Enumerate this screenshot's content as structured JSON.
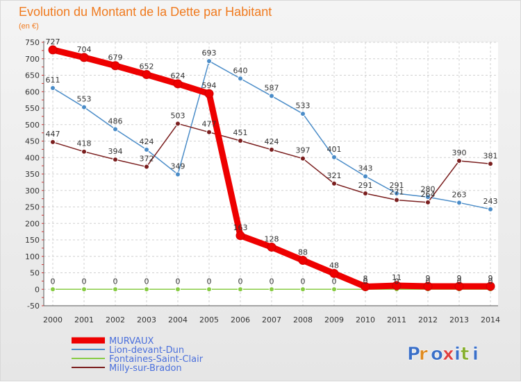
{
  "chart_data": {
    "type": "line",
    "title": "Evolution du Montant de la Dette par Habitant",
    "subtitle": "(en €)",
    "xlabel": "",
    "ylabel": "",
    "x": [
      2000,
      2001,
      2002,
      2003,
      2004,
      2005,
      2006,
      2007,
      2008,
      2009,
      2010,
      2011,
      2012,
      2013,
      2014
    ],
    "ylim": [
      -50,
      750
    ],
    "yticks": [
      -50,
      0,
      50,
      100,
      150,
      200,
      250,
      300,
      350,
      400,
      450,
      500,
      550,
      600,
      650,
      700,
      750
    ],
    "grid": true,
    "legend_position": "bottom-left",
    "series": [
      {
        "name": "MURVAUX",
        "color": "#ee0000",
        "values": [
          727,
          704,
          679,
          652,
          624,
          594,
          163,
          128,
          88,
          48,
          8,
          11,
          9,
          9,
          9
        ],
        "labels": [
          "727",
          "704",
          "679",
          "652",
          "624",
          "594",
          "163",
          "128",
          "88",
          "48",
          "8",
          "11",
          "9",
          "9",
          "9"
        ]
      },
      {
        "name": "Lion-devant-Dun",
        "color": "#4a8cc8",
        "values": [
          611,
          553,
          486,
          424,
          349,
          693,
          640,
          587,
          533,
          401,
          343,
          291,
          280,
          263,
          243
        ],
        "labels": [
          "611",
          "553",
          "486",
          "424",
          "349",
          "693",
          "640",
          "587",
          "533",
          "401",
          "343",
          "291",
          "280",
          "263",
          "243"
        ]
      },
      {
        "name": "Fontaines-Saint-Clair",
        "color": "#88cc44",
        "values": [
          0,
          0,
          0,
          0,
          0,
          0,
          0,
          0,
          0,
          0,
          0,
          0,
          0,
          0,
          0
        ],
        "labels": [
          "0",
          "0",
          "0",
          "0",
          "0",
          "0",
          "0",
          "0",
          "0",
          "0",
          "0",
          "0",
          "0",
          "0",
          "0"
        ]
      },
      {
        "name": "Milly-sur-Bradon",
        "color": "#7a1e1e",
        "values": [
          447,
          418,
          394,
          372,
          503,
          477,
          451,
          424,
          397,
          321,
          291,
          271,
          264,
          390,
          381
        ],
        "labels": [
          "447",
          "418",
          "394",
          "372",
          "503",
          "477",
          "451",
          "424",
          "397",
          "321",
          "291",
          "271",
          "264",
          "390",
          "381"
        ]
      }
    ]
  },
  "logo": {
    "text": "Proxiti",
    "letter_colors": [
      "#3a6fc8",
      "#e08a1e",
      "#3a6fc8",
      "#e04040",
      "#3a6fc8",
      "#88b030",
      "#3a6fc8"
    ]
  }
}
